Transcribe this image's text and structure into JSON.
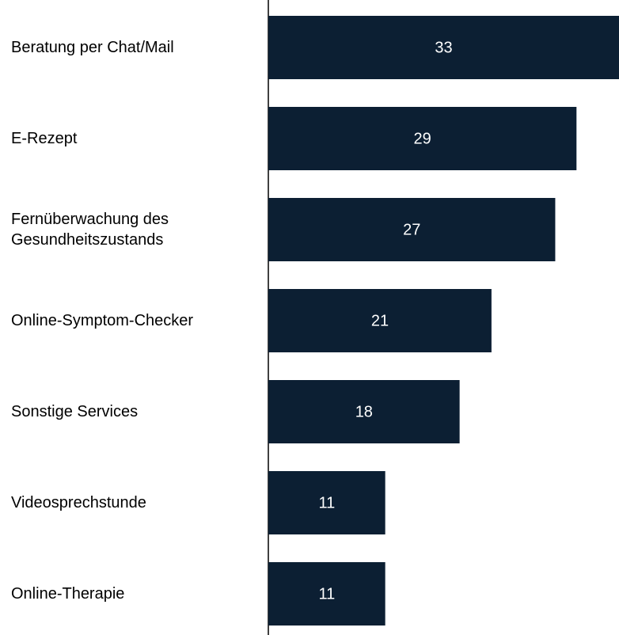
{
  "chart_data": {
    "type": "barh",
    "categories": [
      "Beratung per Chat/Mail",
      "E-Rezept",
      "Fernüberwachung des Gesundheitszustands",
      "Online-Symptom-Checker",
      "Sonstige Services",
      "Videosprechstunde",
      "Online-Therapie"
    ],
    "values": [
      33,
      29,
      27,
      21,
      18,
      11,
      11
    ],
    "color": "#0c1f33"
  }
}
